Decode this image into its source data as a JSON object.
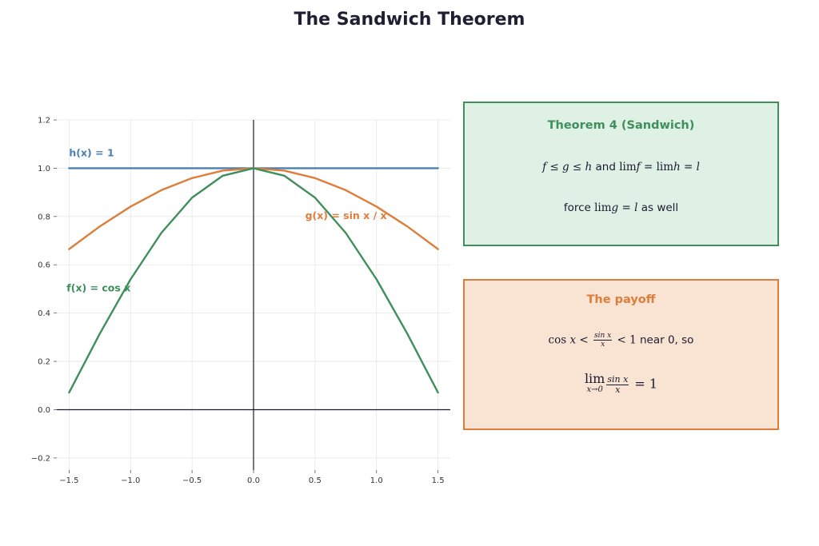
{
  "page": {
    "title": "The Sandwich Theorem"
  },
  "chart_data": {
    "type": "line",
    "title": "",
    "xlabel": "",
    "ylabel": "",
    "xlim": [
      -1.6,
      1.6
    ],
    "ylim": [
      -0.25,
      1.2
    ],
    "x_ticks": [
      -1.5,
      -1.0,
      -0.5,
      0.0,
      0.5,
      1.0,
      1.5
    ],
    "x_tick_labels": [
      "−1.5",
      "−1.0",
      "−0.5",
      "0.0",
      "0.5",
      "1.0",
      "1.5"
    ],
    "y_ticks": [
      -0.2,
      0.0,
      0.2,
      0.4,
      0.6,
      0.8,
      1.0,
      1.2
    ],
    "y_tick_labels": [
      "−0.2",
      "0.0",
      "0.2",
      "0.4",
      "0.6",
      "0.8",
      "1.0",
      "1.2"
    ],
    "grid": true,
    "x_domain": [
      -1.5,
      1.5
    ],
    "series": [
      {
        "name": "h(x) = 1",
        "color": "#4a7fb5",
        "x": [
          -1.5,
          -1.0,
          -0.5,
          0.0,
          0.5,
          1.0,
          1.5
        ],
        "values": [
          1.0,
          1.0,
          1.0,
          1.0,
          1.0,
          1.0,
          1.0
        ]
      },
      {
        "name": "g(x) = sin x / x",
        "color": "#dd7e3c",
        "x": [
          -1.5,
          -1.25,
          -1.0,
          -0.75,
          -0.5,
          -0.25,
          0.0,
          0.25,
          0.5,
          0.75,
          1.0,
          1.25,
          1.5
        ],
        "values": [
          0.665,
          0.759,
          0.841,
          0.909,
          0.959,
          0.99,
          1.0,
          0.99,
          0.959,
          0.909,
          0.841,
          0.759,
          0.665
        ]
      },
      {
        "name": "f(x) = cos x",
        "color": "#3f8f5c",
        "x": [
          -1.5,
          -1.25,
          -1.0,
          -0.75,
          -0.5,
          -0.25,
          0.0,
          0.25,
          0.5,
          0.75,
          1.0,
          1.25,
          1.5
        ],
        "values": [
          0.071,
          0.315,
          0.54,
          0.732,
          0.878,
          0.969,
          1.0,
          0.969,
          0.878,
          0.732,
          0.54,
          0.315,
          0.071
        ]
      }
    ],
    "annotations": [
      {
        "text": "h(x) = 1",
        "x": -1.5,
        "y": 1.05,
        "color": "#4a7fb5"
      },
      {
        "text": "g(x) = sin x / x",
        "x": 0.42,
        "y": 0.79,
        "color": "#dd7e3c"
      },
      {
        "text": "f(x) = cos x",
        "x": -1.52,
        "y": 0.49,
        "color": "#3f8f5c"
      }
    ]
  },
  "theorem_box": {
    "title": "Theorem 4 (Sandwich)",
    "f": "f",
    "le1": " ≤ ",
    "g": "g",
    "le2": " ≤ ",
    "h": "h",
    "and": " and ",
    "lim1": "lim",
    "f2": "f",
    "eq1": " = ",
    "lim2": "lim",
    "h2": "h",
    "eq2": " = ",
    "l1": "l",
    "force": "force ",
    "lim3": "lim",
    "g2": "g",
    "eq3": " = ",
    "l2": "l",
    "as_well": " as well"
  },
  "payoff_box": {
    "title": "The payoff",
    "cos": "cos",
    "x1": " x",
    "lt1": " < ",
    "frac_num": "sin x",
    "frac_den": "x",
    "lt2": " < 1",
    "near": " near 0, so",
    "lim": "lim",
    "lim_sub": "x→0",
    "frac2_num": "sin x",
    "frac2_den": "x",
    "eq": " = 1"
  }
}
